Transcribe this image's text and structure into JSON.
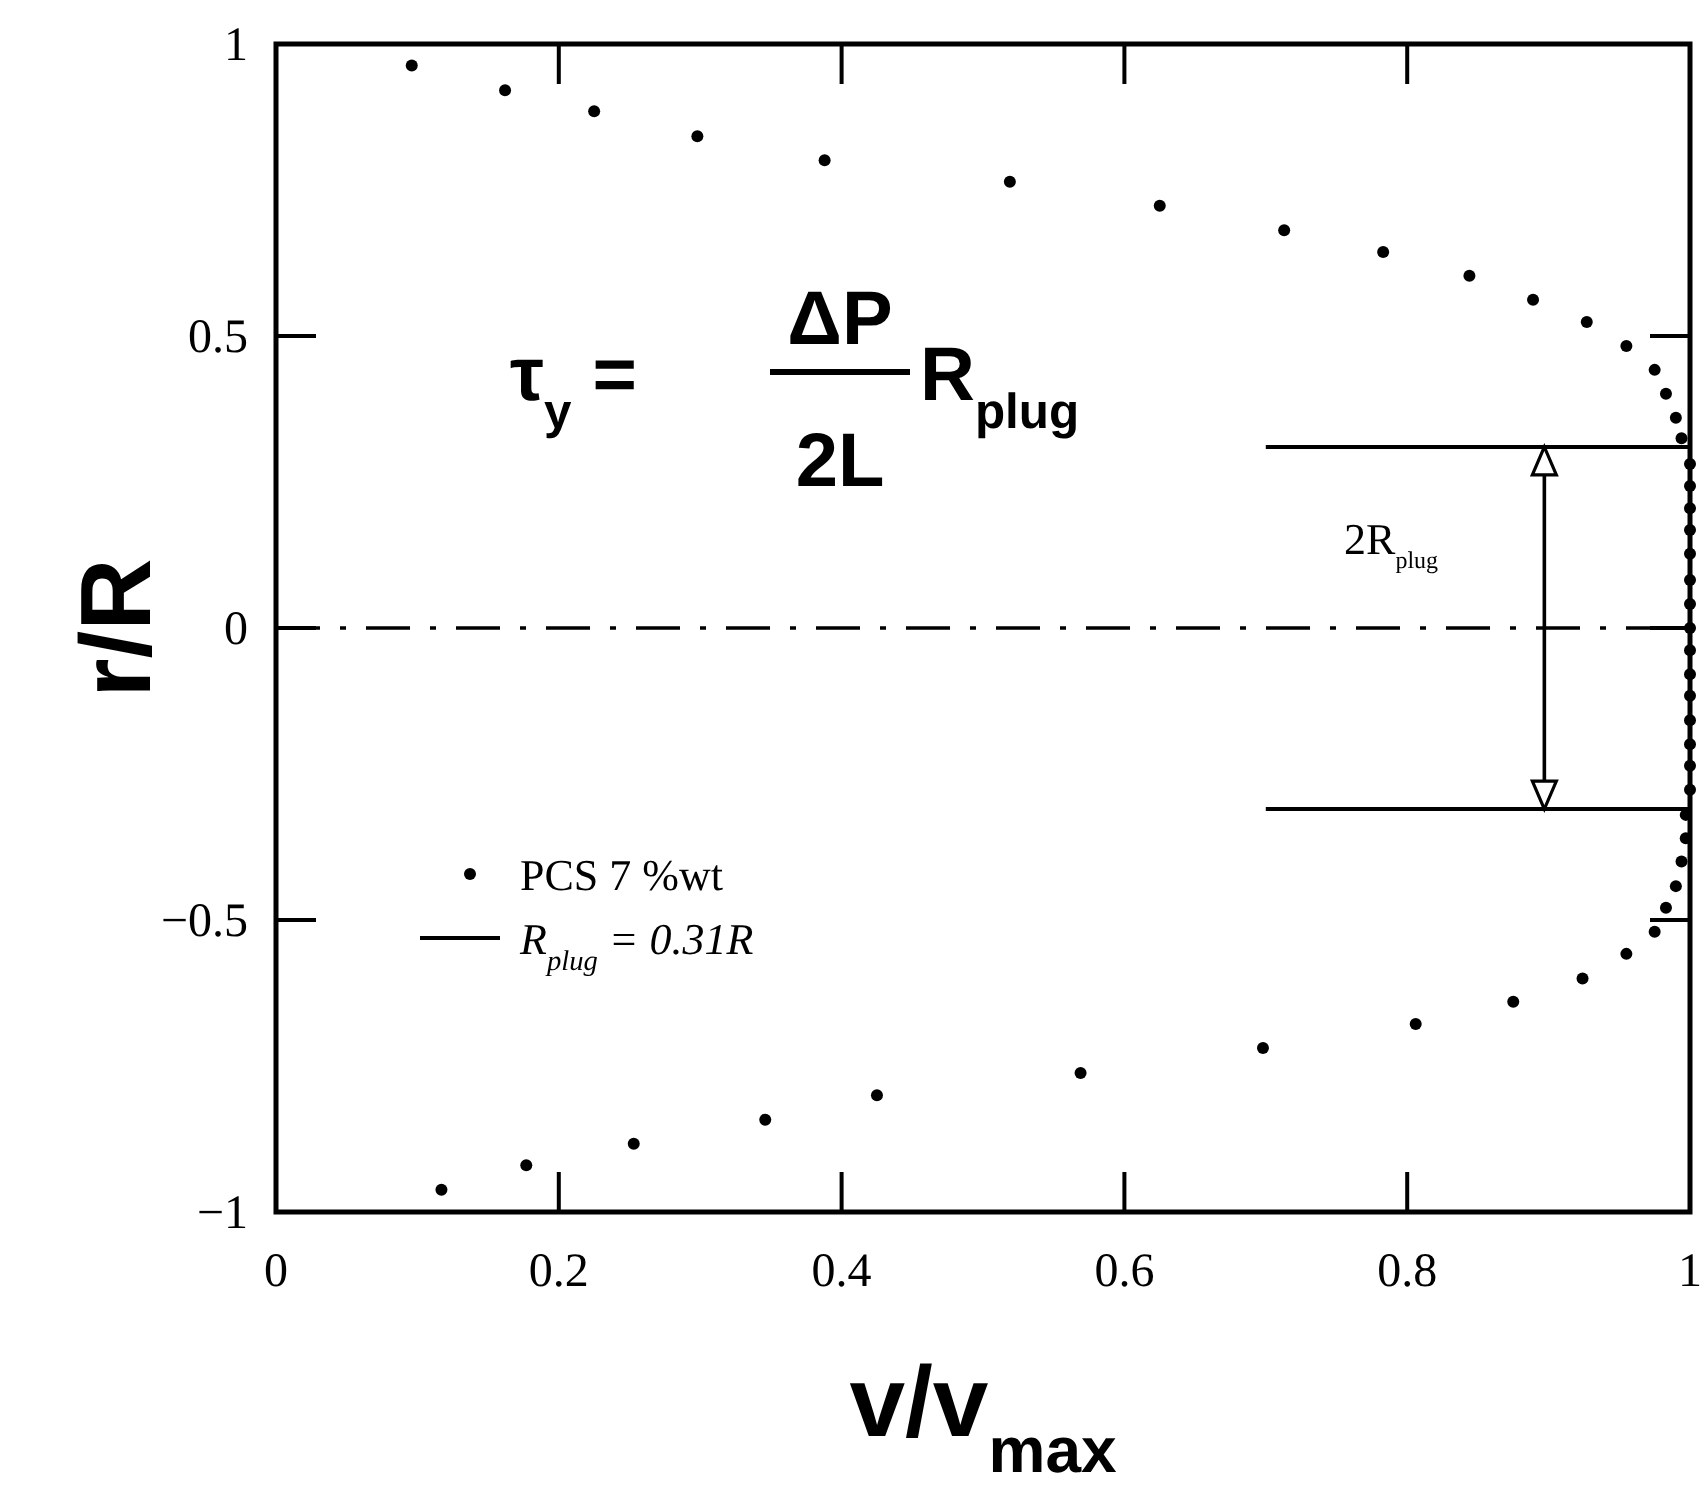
{
  "chart_data": {
    "type": "scatter",
    "xlabel": "v/v$_{max}$",
    "ylabel": "r/R",
    "xlim": [
      0,
      1
    ],
    "ylim": [
      -1,
      1
    ],
    "xticks": [
      0,
      0.2,
      0.4,
      0.6,
      0.8,
      1
    ],
    "yticks": [
      {
        "value": -1,
        "label": "−1"
      },
      {
        "value": -0.5,
        "label": "−0.5"
      },
      0,
      0.5,
      1
    ],
    "legend": "bottom left",
    "series": [
      {
        "name": "PCS 7 %wt",
        "color": "#000000",
        "marker": "circle",
        "x": [
          0.096,
          0.162,
          0.225,
          0.298,
          0.388,
          0.519,
          0.625,
          0.713,
          0.783,
          0.844,
          0.889,
          0.927,
          0.955,
          0.975,
          0.983,
          0.99,
          0.994,
          1,
          1,
          1,
          1,
          1,
          1,
          1,
          1,
          1,
          1,
          1,
          1,
          1,
          1,
          1,
          0.997,
          0.997,
          0.994,
          0.99,
          0.983,
          0.975,
          0.955,
          0.924,
          0.875,
          0.806,
          0.698,
          0.569,
          0.425,
          0.346,
          0.253,
          0.177,
          0.117
        ],
        "values": [
          0.963,
          0.921,
          0.885,
          0.842,
          0.801,
          0.764,
          0.723,
          0.681,
          0.644,
          0.603,
          0.562,
          0.524,
          0.483,
          0.442,
          0.401,
          0.36,
          0.325,
          0.281,
          0.243,
          0.205,
          0.168,
          0.127,
          0.082,
          0.041,
          0,
          -0.038,
          -0.079,
          -0.116,
          -0.158,
          -0.199,
          -0.236,
          -0.277,
          -0.32,
          -0.36,
          -0.4,
          -0.442,
          -0.479,
          -0.52,
          -0.558,
          -0.6,
          -0.64,
          -0.678,
          -0.719,
          -0.762,
          -0.8,
          -0.842,
          -0.883,
          -0.92,
          -0.962
        ]
      },
      {
        "name": "R$_{plug}$ = 0.31R",
        "type": "line",
        "color": "#000000",
        "marker": "none",
        "x": [
          0.7,
          1
        ],
        "values": [
          0.31,
          0.31
        ]
      },
      {
        "type": "line",
        "color": "#000000",
        "marker": "none",
        "x": [
          0.7,
          1
        ],
        "values": [
          -0.31,
          -0.31
        ]
      }
    ],
    "ref_lines": [
      {
        "axis": "y",
        "value": 0,
        "color": "#000000",
        "line_style": "dashed"
      }
    ],
    "annotations": [
      "τ$_{y}$ =",
      "ΔP",
      "2L",
      "R$_{plug}$",
      "2R$_{plug}$"
    ]
  }
}
